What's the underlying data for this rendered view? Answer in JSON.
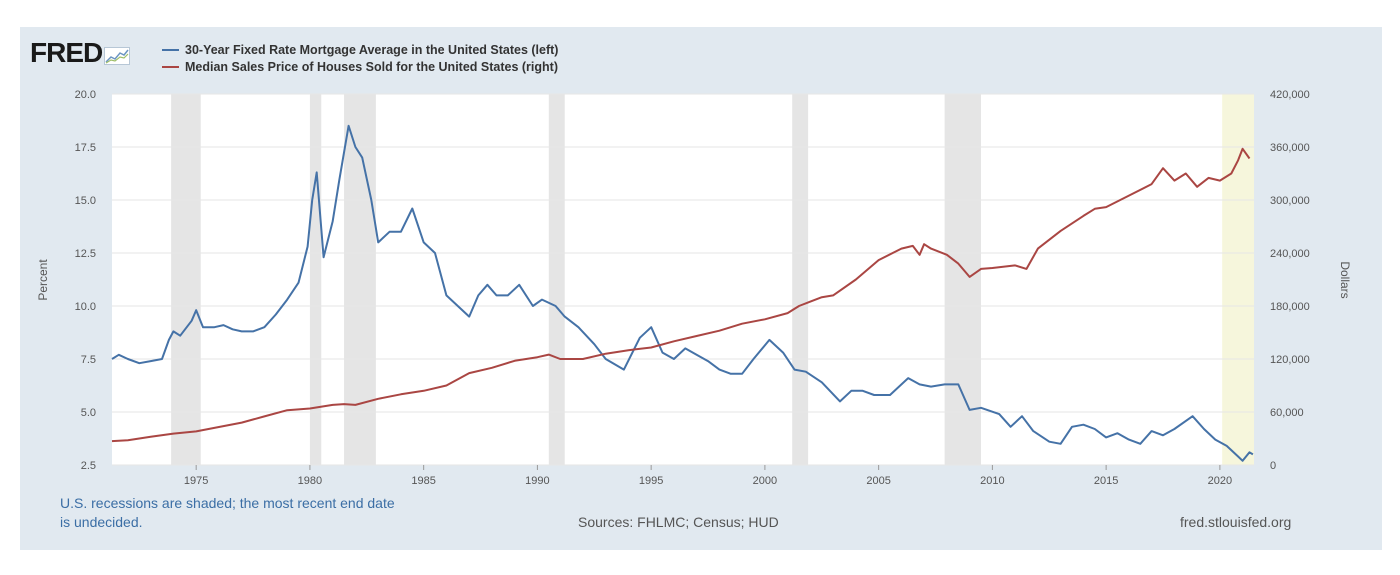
{
  "logo": {
    "text": "FRED"
  },
  "colors": {
    "mortgage": "#4572a7",
    "house_price": "#aa4643",
    "recession": "#e5e5e5",
    "undecided": "#f6f6dc"
  },
  "chart_data": {
    "type": "line",
    "series": [
      {
        "name": "30-Year Fixed Rate Mortgage Average in the United States (left)",
        "axis": "left",
        "points": [
          [
            1971.3,
            7.5
          ],
          [
            1971.6,
            7.7
          ],
          [
            1972.0,
            7.5
          ],
          [
            1972.5,
            7.3
          ],
          [
            1973.0,
            7.4
          ],
          [
            1973.5,
            7.5
          ],
          [
            1973.8,
            8.4
          ],
          [
            1974.0,
            8.8
          ],
          [
            1974.3,
            8.6
          ],
          [
            1974.8,
            9.3
          ],
          [
            1975.0,
            9.8
          ],
          [
            1975.3,
            9.0
          ],
          [
            1975.8,
            9.0
          ],
          [
            1976.2,
            9.1
          ],
          [
            1976.6,
            8.9
          ],
          [
            1977.0,
            8.8
          ],
          [
            1977.5,
            8.8
          ],
          [
            1978.0,
            9.0
          ],
          [
            1978.5,
            9.6
          ],
          [
            1979.0,
            10.3
          ],
          [
            1979.5,
            11.1
          ],
          [
            1979.9,
            12.8
          ],
          [
            1980.1,
            15.0
          ],
          [
            1980.3,
            16.3
          ],
          [
            1980.6,
            12.3
          ],
          [
            1981.0,
            14.0
          ],
          [
            1981.3,
            16.0
          ],
          [
            1981.7,
            18.5
          ],
          [
            1982.0,
            17.5
          ],
          [
            1982.3,
            17.0
          ],
          [
            1982.7,
            15.0
          ],
          [
            1983.0,
            13.0
          ],
          [
            1983.5,
            13.5
          ],
          [
            1984.0,
            13.5
          ],
          [
            1984.5,
            14.6
          ],
          [
            1985.0,
            13.0
          ],
          [
            1985.5,
            12.5
          ],
          [
            1986.0,
            10.5
          ],
          [
            1986.5,
            10.0
          ],
          [
            1987.0,
            9.5
          ],
          [
            1987.4,
            10.5
          ],
          [
            1987.8,
            11.0
          ],
          [
            1988.2,
            10.5
          ],
          [
            1988.7,
            10.5
          ],
          [
            1989.2,
            11.0
          ],
          [
            1989.8,
            10.0
          ],
          [
            1990.2,
            10.3
          ],
          [
            1990.8,
            10.0
          ],
          [
            1991.2,
            9.5
          ],
          [
            1991.8,
            9.0
          ],
          [
            1992.5,
            8.2
          ],
          [
            1993.0,
            7.5
          ],
          [
            1993.8,
            7.0
          ],
          [
            1994.5,
            8.5
          ],
          [
            1995.0,
            9.0
          ],
          [
            1995.5,
            7.8
          ],
          [
            1996.0,
            7.5
          ],
          [
            1996.5,
            8.0
          ],
          [
            1997.0,
            7.7
          ],
          [
            1997.5,
            7.4
          ],
          [
            1998.0,
            7.0
          ],
          [
            1998.5,
            6.8
          ],
          [
            1999.0,
            6.8
          ],
          [
            1999.5,
            7.5
          ],
          [
            2000.2,
            8.4
          ],
          [
            2000.8,
            7.8
          ],
          [
            2001.3,
            7.0
          ],
          [
            2001.8,
            6.9
          ],
          [
            2002.5,
            6.4
          ],
          [
            2003.3,
            5.5
          ],
          [
            2003.8,
            6.0
          ],
          [
            2004.3,
            6.0
          ],
          [
            2004.8,
            5.8
          ],
          [
            2005.5,
            5.8
          ],
          [
            2006.3,
            6.6
          ],
          [
            2006.8,
            6.3
          ],
          [
            2007.3,
            6.2
          ],
          [
            2007.9,
            6.3
          ],
          [
            2008.5,
            6.3
          ],
          [
            2009.0,
            5.1
          ],
          [
            2009.5,
            5.2
          ],
          [
            2010.3,
            4.9
          ],
          [
            2010.8,
            4.3
          ],
          [
            2011.3,
            4.8
          ],
          [
            2011.8,
            4.1
          ],
          [
            2012.5,
            3.6
          ],
          [
            2013.0,
            3.5
          ],
          [
            2013.5,
            4.3
          ],
          [
            2014.0,
            4.4
          ],
          [
            2014.5,
            4.2
          ],
          [
            2015.0,
            3.8
          ],
          [
            2015.5,
            4.0
          ],
          [
            2016.0,
            3.7
          ],
          [
            2016.5,
            3.5
          ],
          [
            2017.0,
            4.1
          ],
          [
            2017.5,
            3.9
          ],
          [
            2018.0,
            4.2
          ],
          [
            2018.8,
            4.8
          ],
          [
            2019.3,
            4.2
          ],
          [
            2019.8,
            3.7
          ],
          [
            2020.3,
            3.4
          ],
          [
            2020.8,
            2.9
          ],
          [
            2021.0,
            2.7
          ],
          [
            2021.3,
            3.1
          ],
          [
            2021.45,
            3.0
          ]
        ]
      },
      {
        "name": "Median Sales Price of Houses Sold for the United States (right)",
        "axis": "right",
        "points": [
          [
            1971.3,
            27000
          ],
          [
            1972.0,
            28000
          ],
          [
            1973.0,
            32000
          ],
          [
            1974.0,
            35500
          ],
          [
            1975.0,
            38000
          ],
          [
            1976.0,
            43000
          ],
          [
            1977.0,
            48000
          ],
          [
            1978.0,
            55000
          ],
          [
            1979.0,
            62000
          ],
          [
            1980.0,
            64000
          ],
          [
            1981.0,
            68000
          ],
          [
            1981.5,
            69000
          ],
          [
            1982.0,
            68000
          ],
          [
            1983.0,
            75000
          ],
          [
            1984.0,
            80000
          ],
          [
            1985.0,
            84000
          ],
          [
            1986.0,
            90000
          ],
          [
            1987.0,
            104000
          ],
          [
            1988.0,
            110000
          ],
          [
            1989.0,
            118000
          ],
          [
            1990.0,
            122000
          ],
          [
            1990.5,
            125000
          ],
          [
            1991.0,
            120000
          ],
          [
            1992.0,
            120000
          ],
          [
            1993.0,
            126000
          ],
          [
            1994.0,
            130000
          ],
          [
            1995.0,
            133000
          ],
          [
            1996.0,
            140000
          ],
          [
            1997.0,
            146000
          ],
          [
            1998.0,
            152000
          ],
          [
            1999.0,
            160000
          ],
          [
            2000.0,
            165000
          ],
          [
            2001.0,
            172000
          ],
          [
            2001.5,
            180000
          ],
          [
            2002.0,
            185000
          ],
          [
            2002.5,
            190000
          ],
          [
            2003.0,
            192000
          ],
          [
            2004.0,
            210000
          ],
          [
            2005.0,
            232000
          ],
          [
            2006.0,
            245000
          ],
          [
            2006.5,
            248000
          ],
          [
            2006.8,
            238000
          ],
          [
            2007.0,
            250000
          ],
          [
            2007.3,
            245000
          ],
          [
            2008.0,
            238000
          ],
          [
            2008.5,
            228000
          ],
          [
            2009.0,
            213000
          ],
          [
            2009.5,
            222000
          ],
          [
            2010.0,
            223000
          ],
          [
            2011.0,
            226000
          ],
          [
            2011.5,
            222000
          ],
          [
            2012.0,
            245000
          ],
          [
            2013.0,
            265000
          ],
          [
            2014.0,
            282000
          ],
          [
            2014.5,
            290000
          ],
          [
            2015.0,
            292000
          ],
          [
            2016.0,
            305000
          ],
          [
            2017.0,
            318000
          ],
          [
            2017.5,
            336000
          ],
          [
            2018.0,
            322000
          ],
          [
            2018.5,
            330000
          ],
          [
            2019.0,
            315000
          ],
          [
            2019.5,
            325000
          ],
          [
            2020.0,
            322000
          ],
          [
            2020.5,
            330000
          ],
          [
            2020.8,
            345000
          ],
          [
            2021.0,
            358000
          ],
          [
            2021.3,
            347000
          ]
        ]
      }
    ],
    "recessions": [
      [
        1973.9,
        1975.2
      ],
      [
        1980.0,
        1980.5
      ],
      [
        1981.5,
        1982.9
      ],
      [
        1990.5,
        1991.2
      ],
      [
        2001.2,
        2001.9
      ],
      [
        2007.9,
        2009.5
      ]
    ],
    "current_recession": [
      2020.1,
      2021.5
    ],
    "x_range": [
      1971.3,
      2021.5
    ],
    "x_ticks": [
      "1975",
      "1980",
      "1985",
      "1990",
      "1995",
      "2000",
      "2005",
      "2010",
      "2015",
      "2020"
    ],
    "y_left": {
      "label": "Percent",
      "range": [
        2.5,
        20.0
      ],
      "ticks": [
        "2.5",
        "5.0",
        "7.5",
        "10.0",
        "12.5",
        "15.0",
        "17.5",
        "20.0"
      ]
    },
    "y_right": {
      "label": "Dollars",
      "range": [
        0,
        420000
      ],
      "ticks": [
        "0",
        "60,000",
        "120,000",
        "180,000",
        "240,000",
        "300,000",
        "360,000",
        "420,000"
      ]
    },
    "grid": true,
    "legend_position": "top-left"
  },
  "footer": {
    "note": "U.S. recessions are shaded; the most recent end date is undecided.",
    "sources": "Sources: FHLMC; Census; HUD",
    "site": "fred.stlouisfed.org"
  }
}
